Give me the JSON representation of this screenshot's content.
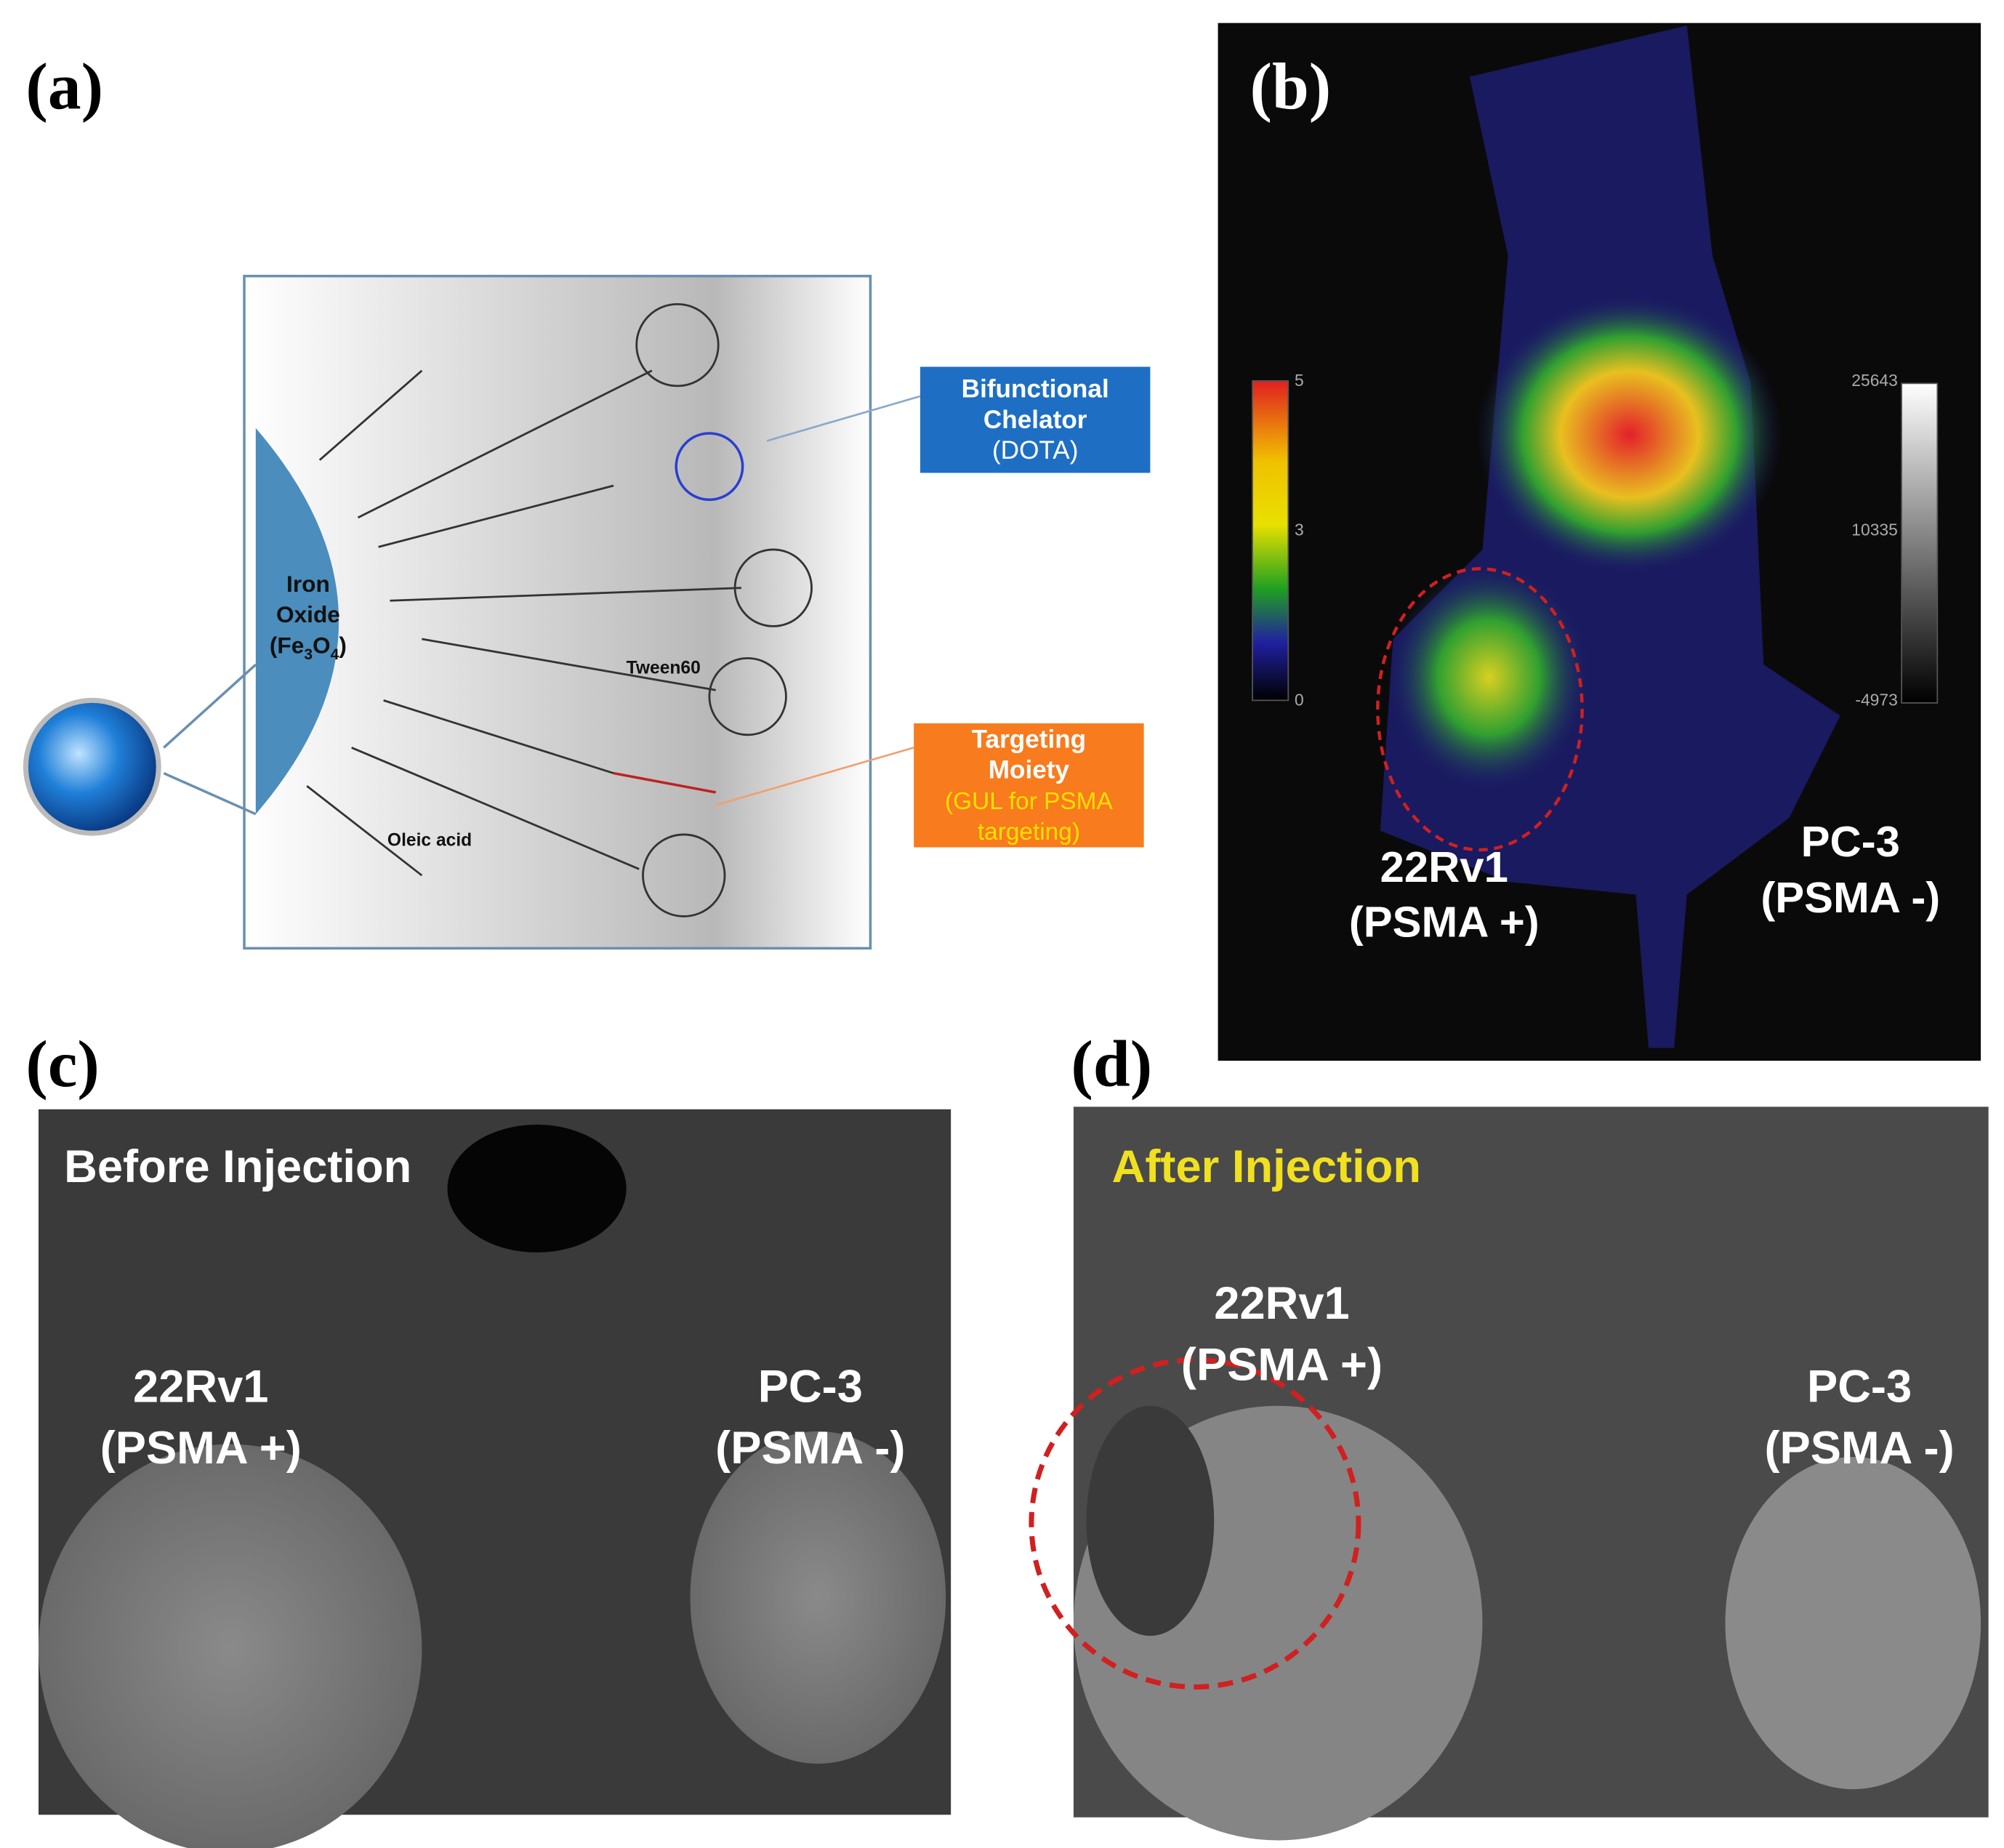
{
  "panels": {
    "a": {
      "label": "(a)",
      "iron_oxide": {
        "lines": [
          "Iron",
          "Oxide"
        ],
        "formula": [
          "(Fe",
          "3",
          "O",
          "4",
          ")"
        ]
      },
      "chelator": [
        "Bifunctional",
        "Chelator",
        "(DOTA)"
      ],
      "targeting": {
        "lines": [
          "Targeting",
          "Moiety"
        ],
        "sub": [
          "(GUL for PSMA",
          "targeting)"
        ]
      },
      "tween": "Tween60",
      "oleic": "Oleic acid"
    },
    "b": {
      "label": "(b)",
      "color_scale": [
        "5",
        "3",
        "0"
      ],
      "gray_scale": [
        "25643",
        "10335",
        "-4973"
      ],
      "left_tumor": [
        "22Rv1",
        "(PSMA +)"
      ],
      "right_tumor": [
        "PC-3",
        "(PSMA -)"
      ]
    },
    "c": {
      "label": "(c)",
      "caption": "Before Injection",
      "left_tumor": [
        "22Rv1",
        "(PSMA +)"
      ],
      "right_tumor": [
        "PC-3",
        "(PSMA -)"
      ]
    },
    "d": {
      "label": "(d)",
      "caption": "After Injection",
      "left_tumor": [
        "22Rv1",
        "(PSMA +)"
      ],
      "right_tumor": [
        "PC-3",
        "(PSMA -)"
      ]
    }
  }
}
